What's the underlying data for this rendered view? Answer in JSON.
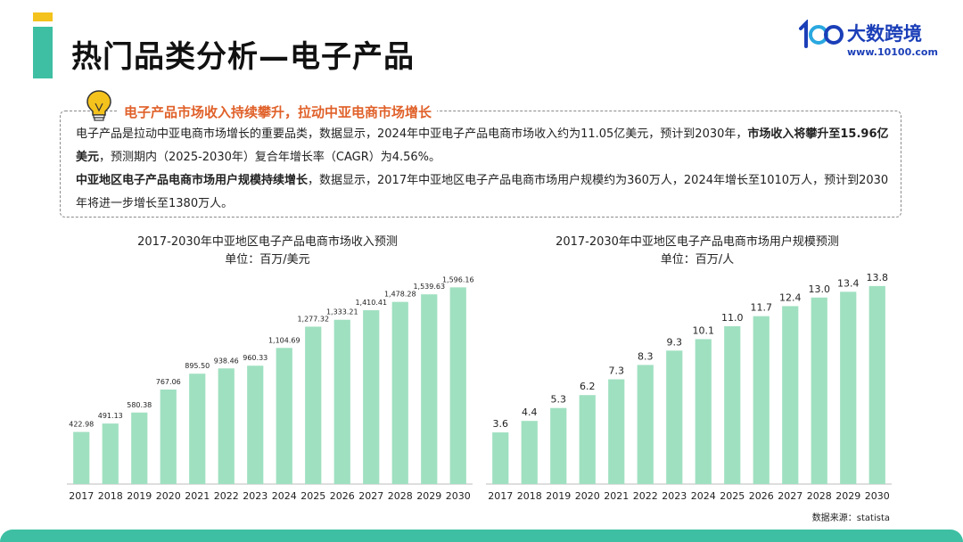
{
  "header": {
    "title": "热门品类分析—电子产品",
    "logo_mark": "100",
    "logo_name": "大数跨境",
    "logo_url": "www.10100.com"
  },
  "info": {
    "heading": "电子产品市场收入持续攀升，拉动中亚电商市场增长",
    "p1_a": "电子产品是拉动中亚电商市场增长的重要品类，数据显示，2024年中亚电子产品电商市场收入约为11.05亿美元，预计到2030年，",
    "p1_bold": "市场收入将攀升至15.96亿美元",
    "p1_b": "，预测期内（2025-2030年）复合年增长率（CAGR）为4.56%。",
    "p2_bold": "中亚地区电子产品电商市场用户规模持续增长",
    "p2_a": "，数据显示，2017年中亚地区电子产品电商市场用户规模约为360万人，2024年增长至1010万人，预计到2030年将进一步增长至1380万人。"
  },
  "source": "数据来源：statista",
  "chart_data": [
    {
      "type": "bar",
      "title": "2017-2030年中亚地区电子产品电商市场收入预测",
      "subtitle": "单位：百万/美元",
      "categories": [
        "2017",
        "2018",
        "2019",
        "2020",
        "2021",
        "2022",
        "2023",
        "2024",
        "2025",
        "2026",
        "2027",
        "2028",
        "2029",
        "2030"
      ],
      "values": [
        422.98,
        491.13,
        580.38,
        767.06,
        895.5,
        938.46,
        960.33,
        1104.69,
        1277.32,
        1333.21,
        1410.41,
        1478.28,
        1539.63,
        1596.16
      ],
      "labels": [
        "422.98",
        "491.13",
        "580.38",
        "767.06",
        "895.50",
        "938.46",
        "960.33",
        "1,104.69",
        "1,277.32",
        "1,333.21",
        "1,410.41",
        "1,478.28",
        "1,539.63",
        "1,596.16"
      ],
      "ylim": [
        0,
        1700
      ],
      "bar_color": "#9fe0c0",
      "grid": false
    },
    {
      "type": "bar",
      "title": "2017-2030年中亚地区电子产品电商市场用户规模预测",
      "subtitle": "单位：百万/人",
      "categories": [
        "2017",
        "2018",
        "2019",
        "2020",
        "2021",
        "2022",
        "2023",
        "2024",
        "2025",
        "2026",
        "2027",
        "2028",
        "2029",
        "2030"
      ],
      "values": [
        3.6,
        4.4,
        5.3,
        6.2,
        7.3,
        8.3,
        9.3,
        10.1,
        11.0,
        11.7,
        12.4,
        13.0,
        13.4,
        13.8
      ],
      "labels": [
        "3.6",
        "4.4",
        "5.3",
        "6.2",
        "7.3",
        "8.3",
        "9.3",
        "10.1",
        "11.0",
        "11.7",
        "12.4",
        "13.0",
        "13.4",
        "13.8"
      ],
      "ylim": [
        0,
        14.6
      ],
      "bar_color": "#9fe0c0",
      "grid": false
    }
  ]
}
